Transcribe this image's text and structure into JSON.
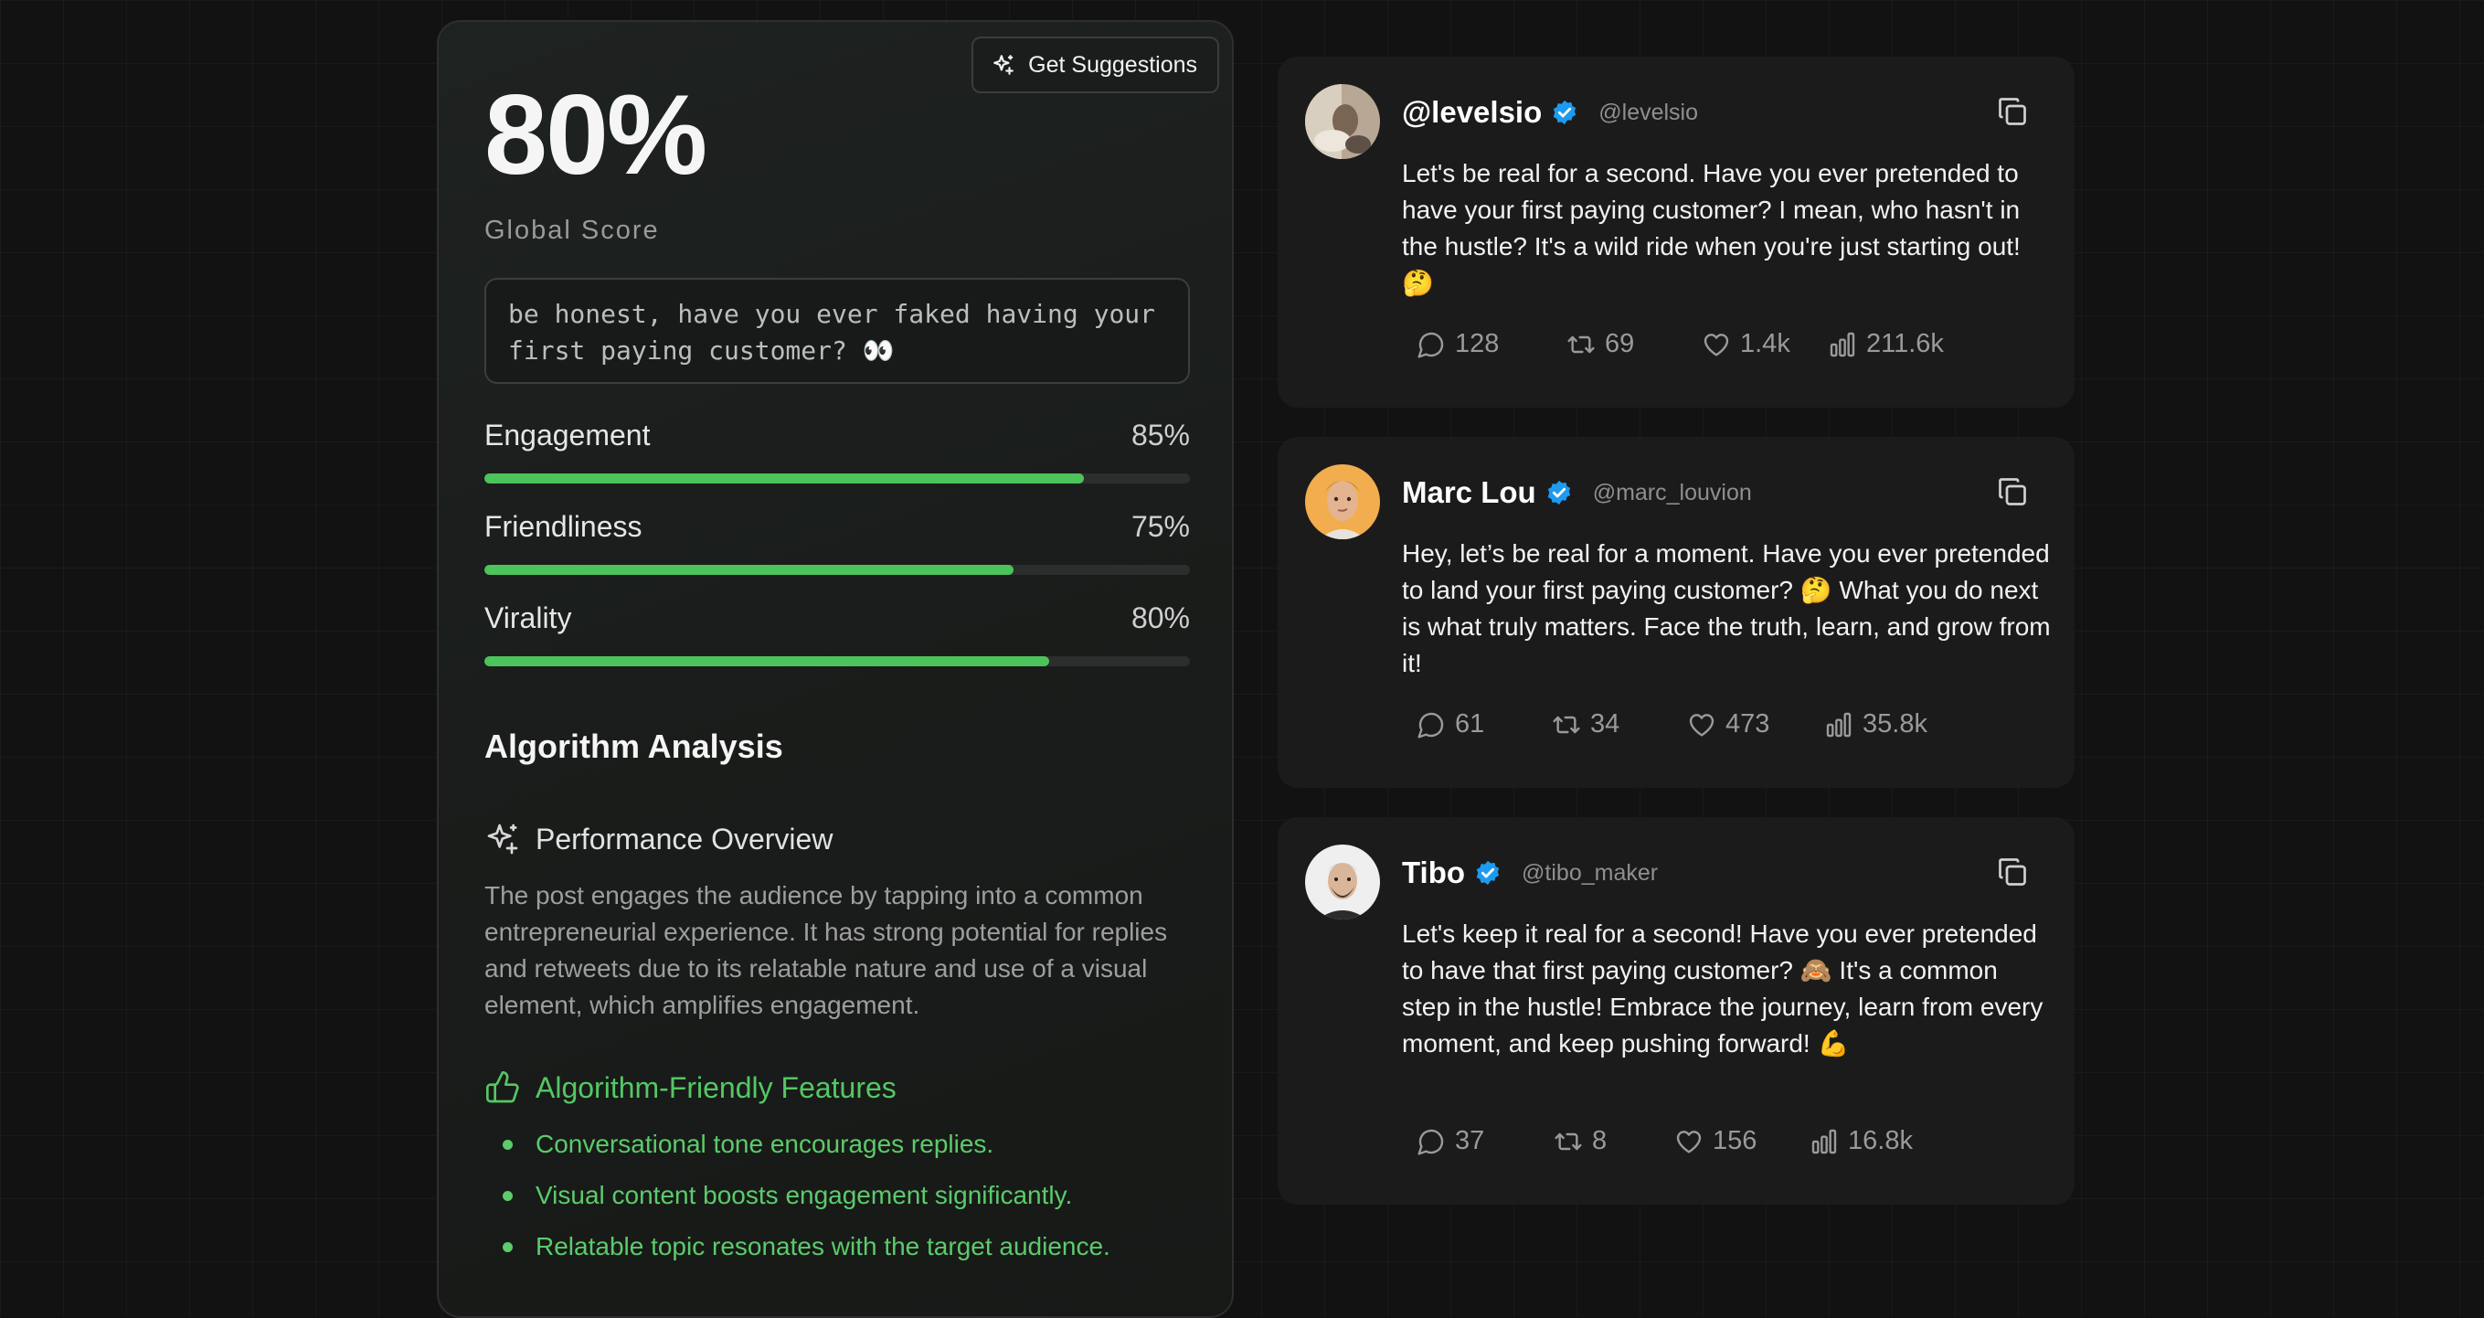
{
  "score_panel": {
    "suggest_button": "Get Suggestions",
    "score": "80%",
    "score_label": "Global Score",
    "post_text": "be honest, have you ever faked having your first paying customer? 👀",
    "metrics": [
      {
        "label": "Engagement",
        "value_text": "85%",
        "value": 85
      },
      {
        "label": "Friendliness",
        "value_text": "75%",
        "value": 75
      },
      {
        "label": "Virality",
        "value_text": "80%",
        "value": 80
      }
    ],
    "analysis_title": "Algorithm Analysis",
    "overview_title": "Performance Overview",
    "overview_text": "The post engages the audience by tapping into a common entrepreneurial experience. It has strong potential for replies and retweets due to its relatable nature and use of a visual element, which amplifies engagement.",
    "features_title": "Algorithm-Friendly Features",
    "features": [
      "Conversational tone encourages replies.",
      "Visual content boosts engagement significantly.",
      "Relatable topic resonates with the target audience."
    ]
  },
  "tweets": [
    {
      "name": "@levelsio",
      "handle": "@levelsio",
      "text": "Let's be real for a second. Have you ever pretended to have your first paying customer? I mean, who hasn't in the hustle? It's a wild ride when you're just starting out! 🤔",
      "replies": "128",
      "retweets": "69",
      "likes": "1.4k",
      "views": "211.6k"
    },
    {
      "name": "Marc Lou",
      "handle": "@marc_louvion",
      "text": "Hey, let’s be real for a moment. Have you ever pretended to land your first paying customer? 🤔 What you do next is what truly matters. Face the truth, learn, and grow from it!",
      "replies": "61",
      "retweets": "34",
      "likes": "473",
      "views": "35.8k"
    },
    {
      "name": "Tibo",
      "handle": "@tibo_maker",
      "text": "Let's keep it real for a second! Have you ever pretended to have that first paying customer? 🙈 It's a common step in the hustle! Embrace the journey, learn from every moment, and keep pushing forward! 💪",
      "replies": "37",
      "retweets": "8",
      "likes": "156",
      "views": "16.8k"
    }
  ],
  "colors": {
    "accent_green": "#4cc35b",
    "verified_blue": "#1d9bf0"
  }
}
